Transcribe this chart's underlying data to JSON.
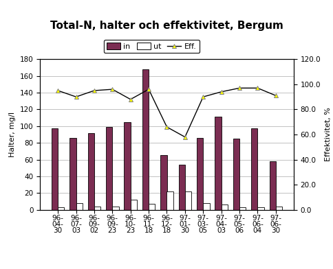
{
  "title": "Total-N, halter och effektivitet, Bergum",
  "ylabel_left": "Halter, mg/l",
  "ylabel_right": "Effektivitet, %",
  "categories": [
    "96-\n04-\n30",
    "96-\n07-\n03",
    "96-\n09-\n02",
    "96-\n09-\n23",
    "96-\n10-\n23",
    "96-\n11-\n18",
    "96-\n12-\n18",
    "97-\n01-\n30",
    "97-\n03-\n05",
    "97-\n04-\n03",
    "97-\n05-\n06",
    "97-\n06-\n04",
    "97-\n06-\n30"
  ],
  "in_values": [
    97,
    86,
    92,
    99,
    105,
    168,
    65,
    54,
    86,
    111,
    85,
    97,
    58
  ],
  "ut_values": [
    3,
    8,
    4,
    4,
    12,
    7,
    22,
    22,
    8,
    6,
    3,
    3,
    4
  ],
  "eff_values": [
    95,
    90,
    95,
    96,
    88,
    96,
    66,
    58,
    90,
    94,
    97,
    97,
    91
  ],
  "bar_color_in": "#7B2D52",
  "bar_color_ut": "#FFFFFF",
  "bar_edge_in": "#000000",
  "bar_edge_ut": "#000000",
  "line_color": "#000000",
  "marker_color": "#FFFF00",
  "marker_edge": "#808080",
  "ylim_left": [
    0,
    180
  ],
  "ylim_right": [
    0,
    120
  ],
  "yticks_left": [
    0,
    20,
    40,
    60,
    80,
    100,
    120,
    140,
    160,
    180
  ],
  "yticks_right": [
    0.0,
    20.0,
    40.0,
    60.0,
    80.0,
    100.0,
    120.0
  ],
  "background_color": "#FFFFFF",
  "title_fontsize": 11,
  "axis_fontsize": 8,
  "tick_fontsize": 7.5,
  "legend_fontsize": 8
}
